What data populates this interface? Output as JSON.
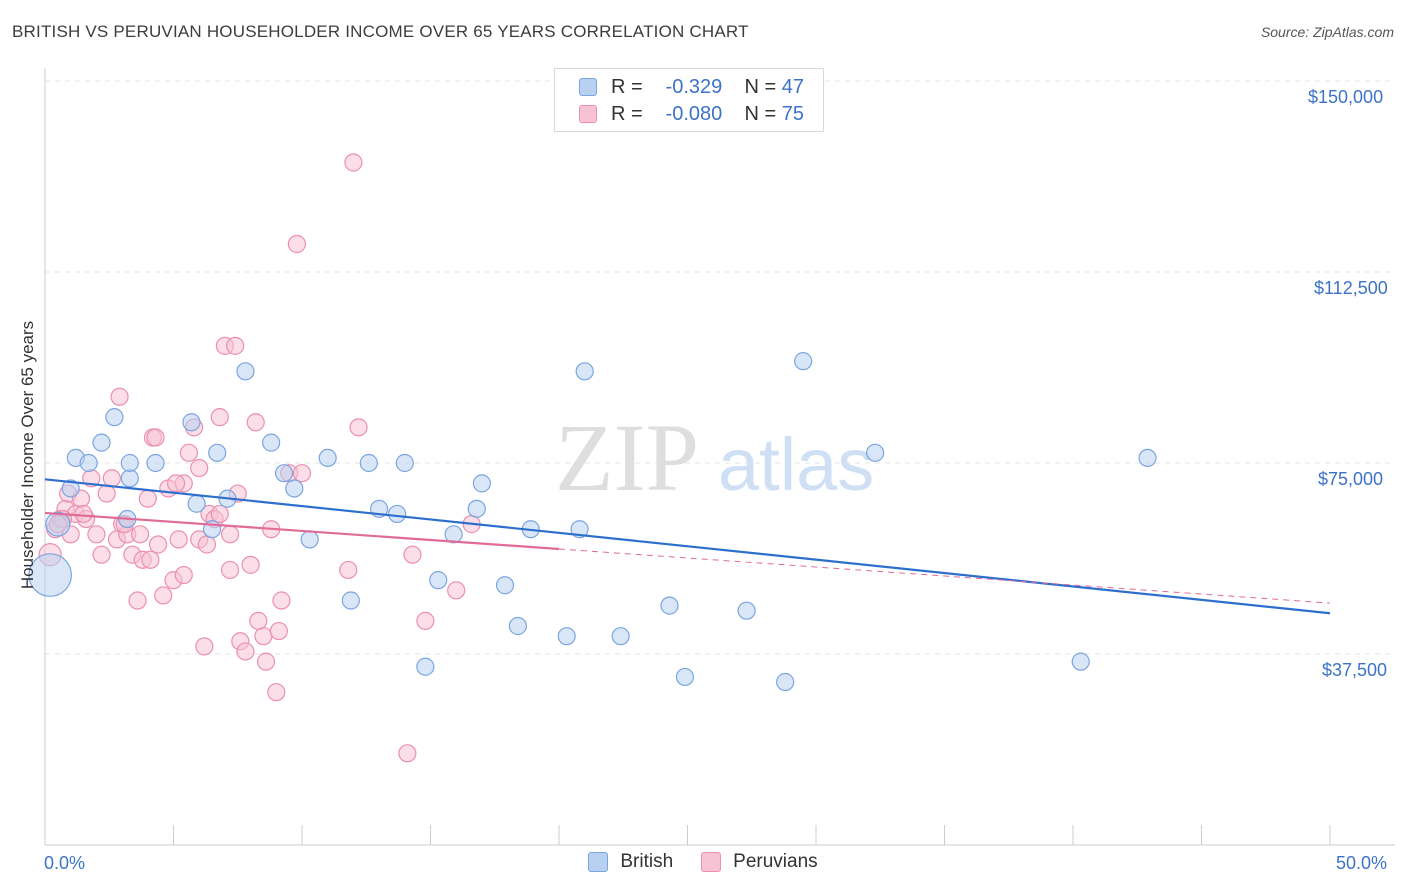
{
  "title": "BRITISH VS PERUVIAN HOUSEHOLDER INCOME OVER 65 YEARS CORRELATION CHART",
  "source": "Source: ZipAtlas.com",
  "watermark": {
    "zip": "ZIP",
    "atlas": "atlas"
  },
  "legend": {
    "british": {
      "r_label": "R =",
      "r_value": "-0.329",
      "n_label": "N =",
      "n_value": "47"
    },
    "peruvians": {
      "r_label": "R =",
      "r_value": "-0.080",
      "n_label": "N =",
      "n_value": "75"
    }
  },
  "colors": {
    "british_fill": "#b9d1f1",
    "british_stroke": "#7aa6e0",
    "british_line": "#2e6fce",
    "peruvian_fill": "#f7c3d4",
    "peruvian_stroke": "#ec8fb0",
    "peruvian_line": "#e06b98",
    "axis_text": "#3d73c7",
    "grid": "#e3e3e3"
  },
  "chart_data": {
    "type": "scatter",
    "title": "BRITISH VS PERUVIAN HOUSEHOLDER INCOME OVER 65 YEARS CORRELATION CHART",
    "xlabel": "",
    "ylabel": "Householder Income Over 65 years",
    "xlim": [
      0,
      50
    ],
    "ylim": [
      0,
      155000
    ],
    "x_tick_labels": [
      "0.0%",
      "50.0%"
    ],
    "y_ticks": [
      37500,
      75000,
      112500,
      150000
    ],
    "y_tick_labels": [
      "$37,500",
      "$75,000",
      "$112,500",
      "$150,000"
    ],
    "series": [
      {
        "name": "British",
        "points": [
          [
            0.2,
            53000,
            2.5
          ],
          [
            0.5,
            63000,
            1.4
          ],
          [
            1.0,
            70000,
            1
          ],
          [
            1.2,
            76000,
            1
          ],
          [
            2.2,
            79000,
            1
          ],
          [
            2.7,
            84000,
            1
          ],
          [
            3.3,
            72000,
            1
          ],
          [
            3.2,
            64000,
            1
          ],
          [
            4.3,
            75000,
            1
          ],
          [
            5.7,
            83000,
            1
          ],
          [
            5.9,
            67000,
            1
          ],
          [
            6.5,
            62000,
            1
          ],
          [
            6.7,
            77000,
            1
          ],
          [
            7.1,
            68000,
            1
          ],
          [
            7.8,
            93000,
            1
          ],
          [
            8.8,
            79000,
            1
          ],
          [
            9.3,
            73000,
            1
          ],
          [
            9.7,
            70000,
            1
          ],
          [
            10.3,
            60000,
            1
          ],
          [
            11.0,
            76000,
            1
          ],
          [
            11.9,
            48000,
            1
          ],
          [
            12.6,
            75000,
            1
          ],
          [
            13.0,
            66000,
            1
          ],
          [
            13.7,
            65000,
            1
          ],
          [
            14.0,
            75000,
            1
          ],
          [
            14.8,
            35000,
            1
          ],
          [
            15.3,
            52000,
            1
          ],
          [
            15.9,
            61000,
            1
          ],
          [
            16.8,
            66000,
            1
          ],
          [
            17.0,
            71000,
            1
          ],
          [
            17.9,
            51000,
            1
          ],
          [
            18.4,
            43000,
            1
          ],
          [
            18.9,
            62000,
            1
          ],
          [
            20.3,
            41000,
            1
          ],
          [
            20.8,
            62000,
            1
          ],
          [
            21.0,
            93000,
            1
          ],
          [
            22.4,
            41000,
            1
          ],
          [
            24.3,
            47000,
            1
          ],
          [
            24.9,
            33000,
            1
          ],
          [
            27.3,
            46000,
            1
          ],
          [
            28.8,
            32000,
            1
          ],
          [
            29.5,
            95000,
            1
          ],
          [
            32.3,
            77000,
            1
          ],
          [
            40.3,
            36000,
            1
          ],
          [
            42.9,
            76000,
            1
          ],
          [
            1.7,
            75000,
            1
          ],
          [
            3.3,
            75000,
            1
          ]
        ]
      },
      {
        "name": "Peruvians",
        "points": [
          [
            0.2,
            57000,
            1.3
          ],
          [
            0.4,
            62000,
            1
          ],
          [
            0.6,
            64000,
            1
          ],
          [
            0.8,
            66000,
            1
          ],
          [
            0.9,
            69000,
            1
          ],
          [
            1.0,
            61000,
            1
          ],
          [
            1.2,
            65000,
            1
          ],
          [
            1.4,
            68000,
            1
          ],
          [
            1.6,
            64000,
            1
          ],
          [
            1.8,
            72000,
            1
          ],
          [
            2.0,
            61000,
            1
          ],
          [
            2.2,
            57000,
            1
          ],
          [
            2.4,
            69000,
            1
          ],
          [
            2.6,
            72000,
            1
          ],
          [
            2.8,
            60000,
            1
          ],
          [
            3.0,
            63000,
            1
          ],
          [
            3.2,
            61000,
            1
          ],
          [
            3.4,
            57000,
            1
          ],
          [
            3.6,
            48000,
            1
          ],
          [
            3.8,
            56000,
            1
          ],
          [
            4.0,
            68000,
            1
          ],
          [
            4.2,
            80000,
            1
          ],
          [
            4.4,
            59000,
            1
          ],
          [
            4.6,
            49000,
            1
          ],
          [
            4.8,
            70000,
            1
          ],
          [
            5.0,
            52000,
            1
          ],
          [
            5.2,
            60000,
            1
          ],
          [
            5.4,
            53000,
            1
          ],
          [
            5.6,
            77000,
            1
          ],
          [
            5.8,
            82000,
            1
          ],
          [
            6.0,
            74000,
            1
          ],
          [
            6.2,
            39000,
            1
          ],
          [
            6.4,
            65000,
            1
          ],
          [
            6.6,
            64000,
            1
          ],
          [
            6.8,
            84000,
            1
          ],
          [
            7.0,
            98000,
            1
          ],
          [
            7.2,
            61000,
            1
          ],
          [
            7.4,
            98000,
            1
          ],
          [
            7.6,
            40000,
            1
          ],
          [
            7.8,
            38000,
            1
          ],
          [
            8.0,
            55000,
            1
          ],
          [
            8.2,
            83000,
            1
          ],
          [
            8.5,
            41000,
            1
          ],
          [
            8.8,
            62000,
            1
          ],
          [
            9.0,
            30000,
            1
          ],
          [
            9.2,
            48000,
            1
          ],
          [
            9.5,
            73000,
            1
          ],
          [
            9.8,
            118000,
            1
          ],
          [
            10.0,
            73000,
            1
          ],
          [
            11.8,
            54000,
            1
          ],
          [
            12.0,
            134000,
            1
          ],
          [
            12.2,
            82000,
            1
          ],
          [
            14.1,
            18000,
            1
          ],
          [
            14.3,
            57000,
            1
          ],
          [
            14.8,
            44000,
            1
          ],
          [
            16.0,
            50000,
            1
          ],
          [
            16.6,
            63000,
            1
          ],
          [
            2.9,
            88000,
            1
          ],
          [
            4.3,
            80000,
            1
          ],
          [
            6.0,
            60000,
            1
          ],
          [
            5.4,
            71000,
            1
          ],
          [
            8.6,
            36000,
            1
          ],
          [
            7.2,
            54000,
            1
          ],
          [
            9.1,
            42000,
            1
          ],
          [
            1.5,
            65000,
            1
          ],
          [
            0.7,
            64000,
            1
          ],
          [
            3.1,
            63000,
            1
          ],
          [
            3.7,
            61000,
            1
          ],
          [
            4.1,
            56000,
            1
          ],
          [
            5.1,
            71000,
            1
          ],
          [
            6.3,
            59000,
            1
          ],
          [
            6.8,
            65000,
            1
          ],
          [
            7.5,
            69000,
            1
          ],
          [
            8.3,
            44000,
            1
          ],
          [
            0.5,
            63000,
            1
          ]
        ]
      }
    ],
    "trend_lines": [
      {
        "series": "British",
        "x0": 0,
        "y0": 71800,
        "x1": 50,
        "y1": 45500,
        "dashed_from": null
      },
      {
        "series": "Peruvians",
        "x0": 0,
        "y0": 65200,
        "x1": 50,
        "y1": 47500,
        "dashed_from": 20
      }
    ]
  },
  "bottom_legend": [
    "British",
    "Peruvians"
  ]
}
